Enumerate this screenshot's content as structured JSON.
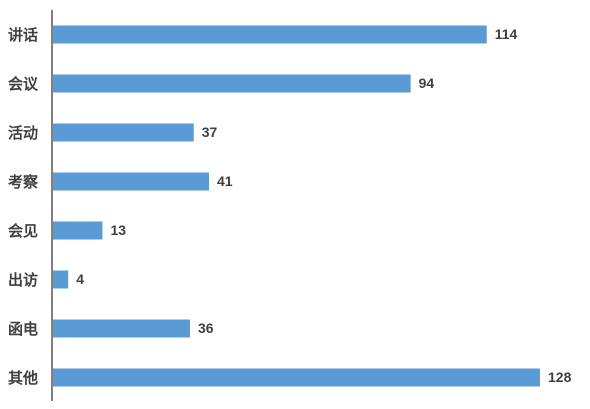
{
  "chart_data": {
    "type": "bar",
    "orientation": "horizontal",
    "categories": [
      "讲话",
      "会议",
      "活动",
      "考察",
      "会见",
      "出访",
      "函电",
      "其他"
    ],
    "values": [
      114,
      94,
      37,
      41,
      13,
      4,
      36,
      128
    ],
    "color": "#5b9bd5"
  }
}
